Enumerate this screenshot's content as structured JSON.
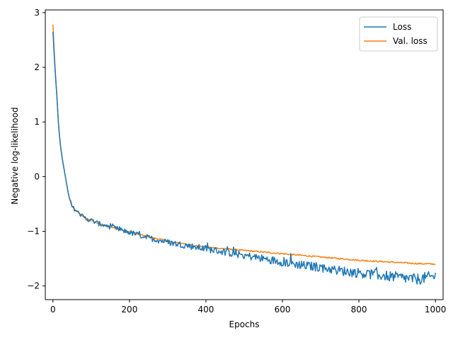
{
  "chart_data": {
    "type": "line",
    "title": "",
    "xlabel": "Epochs",
    "ylabel": "Negative log-likelihood",
    "xlim": [
      -20,
      1020
    ],
    "ylim": [
      -2.25,
      3.05
    ],
    "xticks": [
      0,
      200,
      400,
      600,
      800,
      1000
    ],
    "xtick_labels": [
      "0",
      "200",
      "400",
      "600",
      "800",
      "1000"
    ],
    "yticks": [
      -2,
      -1,
      0,
      1,
      2,
      3
    ],
    "ytick_labels": [
      "−2",
      "−1",
      "0",
      "1",
      "2",
      "3"
    ],
    "grid": false,
    "legend_position": "top-right",
    "series": [
      {
        "name": "Loss",
        "color": "#1f77b4",
        "noise": "high",
        "x": [
          0,
          5,
          10,
          15,
          20,
          25,
          30,
          35,
          40,
          45,
          50,
          60,
          70,
          80,
          90,
          100,
          120,
          150,
          200,
          250,
          300,
          350,
          400,
          450,
          500,
          550,
          600,
          650,
          700,
          750,
          800,
          850,
          900,
          950,
          1000
        ],
        "y": [
          2.65,
          2.0,
          1.5,
          0.9,
          0.55,
          0.3,
          0.1,
          -0.1,
          -0.3,
          -0.45,
          -0.55,
          -0.62,
          -0.68,
          -0.74,
          -0.78,
          -0.8,
          -0.86,
          -0.92,
          -1.02,
          -1.12,
          -1.2,
          -1.26,
          -1.32,
          -1.38,
          -1.44,
          -1.5,
          -1.56,
          -1.62,
          -1.66,
          -1.72,
          -1.76,
          -1.8,
          -1.84,
          -1.88,
          -1.82
        ]
      },
      {
        "name": "Val. loss",
        "color": "#ff7f0e",
        "noise": "low",
        "x": [
          0,
          5,
          10,
          15,
          20,
          25,
          30,
          35,
          40,
          45,
          50,
          60,
          70,
          80,
          90,
          100,
          120,
          150,
          200,
          250,
          300,
          350,
          400,
          450,
          500,
          550,
          600,
          650,
          700,
          750,
          800,
          850,
          900,
          950,
          1000
        ],
        "y": [
          2.78,
          2.05,
          1.5,
          0.9,
          0.55,
          0.3,
          0.1,
          -0.1,
          -0.3,
          -0.45,
          -0.55,
          -0.62,
          -0.68,
          -0.73,
          -0.77,
          -0.8,
          -0.86,
          -0.92,
          -1.01,
          -1.1,
          -1.18,
          -1.24,
          -1.29,
          -1.32,
          -1.35,
          -1.38,
          -1.41,
          -1.44,
          -1.47,
          -1.5,
          -1.53,
          -1.55,
          -1.57,
          -1.59,
          -1.6
        ]
      }
    ]
  }
}
